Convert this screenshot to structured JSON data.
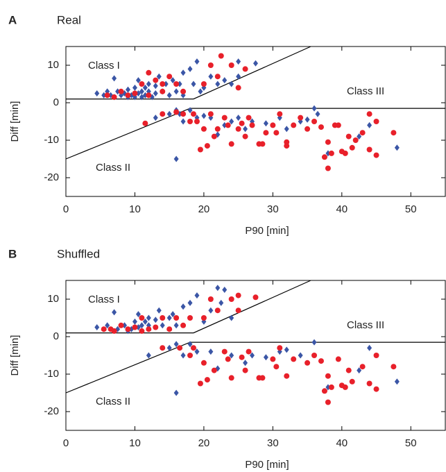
{
  "chart_data": [
    {
      "type": "scatter",
      "panel": "A",
      "title": "Real",
      "x_label": "P90 [min]",
      "y_label": "Diff [min]",
      "xlim": [
        0,
        55
      ],
      "ylim": [
        -25,
        15
      ],
      "xticks": [
        0,
        10,
        20,
        30,
        40,
        50
      ],
      "yticks": [
        -20,
        -10,
        0,
        10
      ],
      "annotations": [
        "Class I",
        "Class II",
        "Class III"
      ],
      "boundaries": [
        {
          "x": [
            0,
            18.5,
            35.5
          ],
          "y": [
            1,
            1,
            15
          ]
        },
        {
          "x": [
            0,
            18,
            55
          ],
          "y": [
            -15,
            -1.5,
            -1.5
          ]
        }
      ],
      "series": [
        {
          "color": "#3b56a6",
          "marker": "diamond",
          "x": [
            4.5,
            5.5,
            6,
            6.5,
            7,
            7,
            7.5,
            8,
            8.5,
            9,
            9,
            9.5,
            10,
            10,
            10.5,
            10.5,
            11,
            11,
            11.5,
            11.5,
            12,
            12,
            12.5,
            13,
            13,
            13.5,
            14,
            14.5,
            15,
            15.5,
            16,
            16,
            16.5,
            17,
            17,
            18,
            18.5,
            19,
            19.5,
            20,
            21,
            22,
            23,
            24,
            25,
            25,
            27.5,
            16,
            16.5,
            17,
            18,
            19,
            20,
            21,
            22,
            23,
            24,
            25,
            26,
            27,
            29,
            31,
            32,
            34,
            35,
            36,
            36.5,
            38,
            42.5,
            44,
            48,
            15,
            13
          ],
          "y": [
            2.5,
            2,
            3,
            2,
            6.5,
            1.5,
            3,
            2,
            2.5,
            1.5,
            3.5,
            2,
            1.5,
            4,
            2.5,
            6,
            1.5,
            3,
            4,
            2,
            5,
            3,
            1.5,
            4.5,
            2.5,
            7,
            3,
            5,
            2,
            6,
            3,
            -15,
            5,
            8,
            2,
            9,
            5,
            11,
            3,
            4,
            7,
            5,
            6,
            5,
            7,
            11,
            10.5,
            -2,
            -3,
            -5,
            -2,
            -4,
            -3.5,
            -4,
            -8.5,
            -6,
            -5,
            -4,
            -7,
            -5,
            -5.5,
            -4,
            -7,
            -5,
            -4.5,
            -1.5,
            -3,
            -13.5,
            -9,
            -6,
            -12,
            -3,
            -4
          ]
        },
        {
          "color": "#e8202a",
          "marker": "circle",
          "x": [
            6,
            7,
            8,
            9,
            10,
            11,
            12,
            12,
            13,
            14,
            14,
            15,
            16,
            17,
            20,
            21,
            22,
            22.5,
            24,
            25,
            26,
            11.5,
            14,
            16,
            17,
            18,
            18.5,
            19,
            19.5,
            20,
            20.5,
            21,
            21.5,
            22,
            23,
            23.5,
            24,
            25,
            25.5,
            26,
            26.5,
            27,
            28,
            28.5,
            29,
            30,
            30.5,
            31,
            32,
            32,
            33,
            34,
            35,
            36,
            37,
            37.5,
            38,
            38,
            38.5,
            39,
            40,
            40.5,
            41,
            41.5,
            42,
            43,
            44,
            44,
            45,
            45,
            47.5,
            39.5
          ],
          "y": [
            2,
            1.5,
            3,
            2,
            2.5,
            5,
            2,
            8,
            6,
            3,
            5,
            7,
            5,
            3,
            5,
            10,
            7,
            12.5,
            10,
            4,
            9,
            -5.5,
            -3,
            -2.5,
            -3,
            -5,
            -3,
            -5,
            -12.5,
            -7,
            -11.5,
            -3,
            -9,
            -7,
            -4,
            -6,
            -11,
            -7,
            -5.5,
            -9,
            -4,
            -6,
            -11,
            -11,
            -8,
            -6,
            -8,
            -3,
            -10.5,
            -11.5,
            -6,
            -4,
            -7,
            -5,
            -6.5,
            -14.5,
            -10.5,
            -17.5,
            -13.5,
            -6,
            -13,
            -13.5,
            -9,
            -12,
            -10,
            -8,
            -3,
            -12.5,
            -14,
            -5,
            -8,
            -6
          ]
        }
      ]
    },
    {
      "type": "scatter",
      "panel": "B",
      "title": "Shuffled",
      "x_label": "P90 [min]",
      "y_label": "Diff [min]",
      "xlim": [
        0,
        55
      ],
      "ylim": [
        -25,
        15
      ],
      "xticks": [
        0,
        10,
        20,
        30,
        40,
        50
      ],
      "yticks": [
        -20,
        -10,
        0,
        10
      ],
      "annotations": [
        "Class I",
        "Class II",
        "Class III"
      ],
      "boundaries": [
        {
          "x": [
            0,
            18.5,
            35.5
          ],
          "y": [
            1,
            1,
            15
          ]
        },
        {
          "x": [
            0,
            18,
            55
          ],
          "y": [
            -15,
            -1.5,
            -1.5
          ]
        }
      ],
      "series": [
        {
          "color": "#3b56a6",
          "marker": "diamond",
          "x": [
            4.5,
            6,
            7,
            7.5,
            8.5,
            9,
            9.5,
            10,
            10.5,
            10.5,
            11,
            11.5,
            12,
            12,
            13,
            13.5,
            14,
            15,
            15.5,
            16,
            16,
            17,
            18,
            19,
            20,
            21,
            22,
            22.5,
            23,
            24,
            12,
            16,
            17,
            18,
            19,
            21,
            22,
            24,
            27,
            29,
            31,
            34,
            36,
            38,
            42.5,
            44,
            48,
            15,
            26,
            32
          ],
          "y": [
            2.5,
            3,
            6.5,
            2,
            3,
            1.5,
            2,
            4,
            2.5,
            6,
            3,
            4,
            5,
            3,
            4.5,
            7,
            3,
            5,
            6,
            3,
            -15,
            8,
            9,
            11,
            4,
            7,
            13,
            9,
            12.5,
            5,
            -5,
            -2,
            -5,
            -2,
            -4,
            -4,
            -8.5,
            -5,
            -5,
            -5.5,
            -4,
            -5,
            -1.5,
            -13.5,
            -9,
            -3,
            -12,
            -3,
            -7,
            -3.5
          ]
        },
        {
          "color": "#e8202a",
          "marker": "circle",
          "x": [
            5.5,
            6.5,
            7,
            8,
            9,
            10,
            11,
            11,
            12,
            13,
            14,
            15,
            16,
            17,
            18,
            20,
            21,
            22,
            24,
            25,
            25,
            27.5,
            14,
            16.5,
            18,
            18.5,
            19.5,
            20,
            20.5,
            21.5,
            23,
            23.5,
            24,
            25.5,
            26,
            26.5,
            28,
            28.5,
            30,
            30.5,
            31,
            32,
            33,
            35,
            36,
            37,
            37.5,
            38,
            38,
            38.5,
            40,
            40.5,
            41,
            41.5,
            43,
            44,
            45,
            45,
            47.5,
            39.5
          ],
          "y": [
            2,
            2,
            1.5,
            3,
            2,
            2.5,
            5,
            1.5,
            2,
            2.5,
            5,
            2,
            5,
            3,
            5,
            5,
            10,
            7,
            10,
            7,
            11,
            10.5,
            -3,
            -3,
            -5,
            -3,
            -12.5,
            -7,
            -11.5,
            -9,
            -4,
            -6,
            -11,
            -5.5,
            -9,
            -4,
            -11,
            -11,
            -6,
            -8,
            -3,
            -10.5,
            -6,
            -7,
            -5,
            -6.5,
            -14.5,
            -10.5,
            -17.5,
            -13.5,
            -13,
            -13.5,
            -9,
            -12,
            -8,
            -12.5,
            -14,
            -5,
            -8,
            -6
          ]
        }
      ]
    }
  ]
}
